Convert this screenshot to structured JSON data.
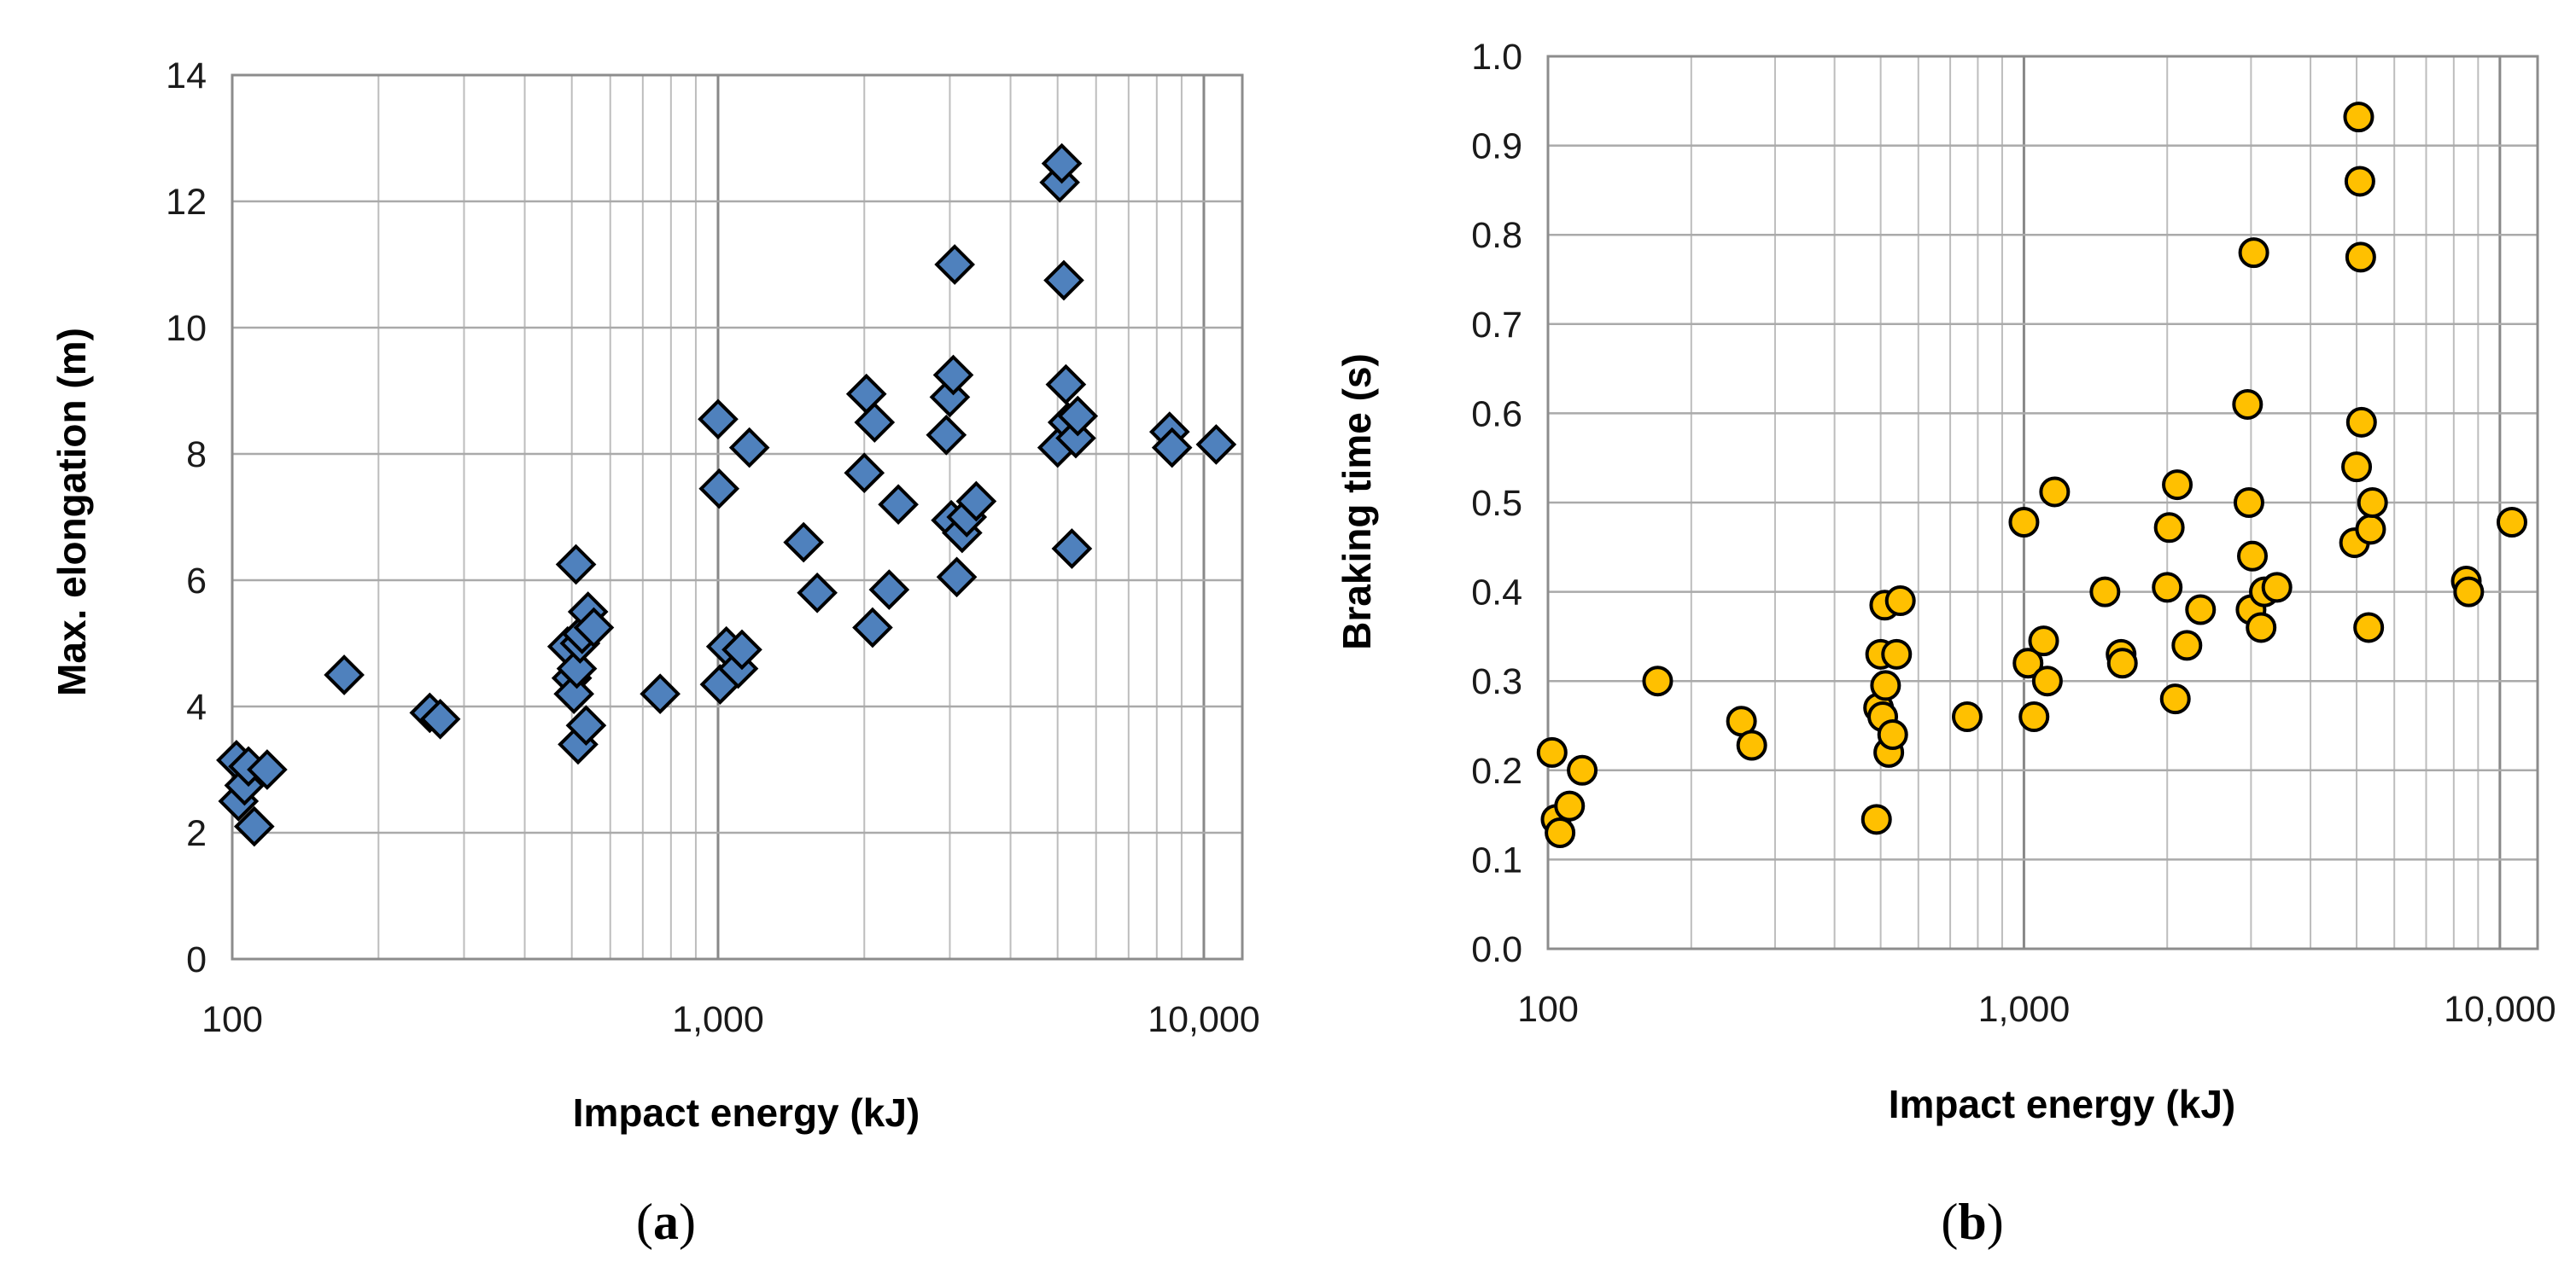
{
  "chart_data": [
    {
      "type": "scatter",
      "panel_label_open": "(",
      "panel_label_letter": "a",
      "panel_label_close": ")",
      "xlabel": "Impact energy (kJ)",
      "ylabel": "Max. elongation (m)",
      "xscale": "log",
      "xlim": [
        100,
        12000
      ],
      "ylim": [
        0,
        14
      ],
      "grid": true,
      "marker": "diamond",
      "marker_color": "#4F81BD",
      "x_ticks": [
        {
          "value": 100,
          "label": "100"
        },
        {
          "value": 1000,
          "label": "1,000"
        },
        {
          "value": 10000,
          "label": "10,000"
        }
      ],
      "y_ticks": [
        {
          "value": 0,
          "label": "0"
        },
        {
          "value": 2,
          "label": "2"
        },
        {
          "value": 4,
          "label": "4"
        },
        {
          "value": 6,
          "label": "6"
        },
        {
          "value": 8,
          "label": "8"
        },
        {
          "value": 10,
          "label": "10"
        },
        {
          "value": 12,
          "label": "12"
        },
        {
          "value": 14,
          "label": "14"
        }
      ],
      "points": [
        {
          "x": 102,
          "y": 3.15
        },
        {
          "x": 103,
          "y": 2.5
        },
        {
          "x": 106,
          "y": 2.75
        },
        {
          "x": 108,
          "y": 3.05
        },
        {
          "x": 111,
          "y": 2.1
        },
        {
          "x": 118,
          "y": 3.0
        },
        {
          "x": 170,
          "y": 4.5
        },
        {
          "x": 255,
          "y": 3.9
        },
        {
          "x": 268,
          "y": 3.8
        },
        {
          "x": 490,
          "y": 4.95
        },
        {
          "x": 500,
          "y": 4.45
        },
        {
          "x": 505,
          "y": 4.2
        },
        {
          "x": 510,
          "y": 6.25
        },
        {
          "x": 512,
          "y": 4.6
        },
        {
          "x": 515,
          "y": 3.4
        },
        {
          "x": 520,
          "y": 5.0
        },
        {
          "x": 525,
          "y": 5.15
        },
        {
          "x": 535,
          "y": 3.7
        },
        {
          "x": 540,
          "y": 5.5
        },
        {
          "x": 555,
          "y": 5.25
        },
        {
          "x": 760,
          "y": 4.2
        },
        {
          "x": 1000,
          "y": 8.55
        },
        {
          "x": 1005,
          "y": 7.45
        },
        {
          "x": 1010,
          "y": 4.35
        },
        {
          "x": 1040,
          "y": 4.95
        },
        {
          "x": 1100,
          "y": 4.6
        },
        {
          "x": 1120,
          "y": 4.9
        },
        {
          "x": 1160,
          "y": 8.1
        },
        {
          "x": 1500,
          "y": 6.6
        },
        {
          "x": 1600,
          "y": 5.8
        },
        {
          "x": 2000,
          "y": 7.7
        },
        {
          "x": 2020,
          "y": 8.95
        },
        {
          "x": 2080,
          "y": 5.25
        },
        {
          "x": 2100,
          "y": 8.5
        },
        {
          "x": 2250,
          "y": 5.85
        },
        {
          "x": 2350,
          "y": 7.2
        },
        {
          "x": 2950,
          "y": 8.3
        },
        {
          "x": 3000,
          "y": 8.9
        },
        {
          "x": 3020,
          "y": 6.95
        },
        {
          "x": 3050,
          "y": 9.25
        },
        {
          "x": 3070,
          "y": 11.0
        },
        {
          "x": 3100,
          "y": 6.05
        },
        {
          "x": 3180,
          "y": 6.75
        },
        {
          "x": 3250,
          "y": 7.0
        },
        {
          "x": 3400,
          "y": 7.25
        },
        {
          "x": 5000,
          "y": 8.1
        },
        {
          "x": 5050,
          "y": 12.3
        },
        {
          "x": 5100,
          "y": 12.6
        },
        {
          "x": 5150,
          "y": 10.75
        },
        {
          "x": 5200,
          "y": 9.1
        },
        {
          "x": 5250,
          "y": 8.5
        },
        {
          "x": 5350,
          "y": 6.5
        },
        {
          "x": 5450,
          "y": 8.25
        },
        {
          "x": 5500,
          "y": 8.6
        },
        {
          "x": 8500,
          "y": 8.35
        },
        {
          "x": 8600,
          "y": 8.1
        },
        {
          "x": 10600,
          "y": 8.15
        }
      ]
    },
    {
      "type": "scatter",
      "panel_label_open": "(",
      "panel_label_letter": "b",
      "panel_label_close": ")",
      "xlabel": "Impact energy (kJ)",
      "ylabel": "Braking time (s)",
      "xscale": "log",
      "xlim": [
        100,
        12000
      ],
      "ylim": [
        0,
        1.0
      ],
      "grid": true,
      "marker": "circle",
      "marker_color": "#FFC000",
      "x_ticks": [
        {
          "value": 100,
          "label": "100"
        },
        {
          "value": 1000,
          "label": "1,000"
        },
        {
          "value": 10000,
          "label": "10,000"
        }
      ],
      "y_ticks": [
        {
          "value": 0.0,
          "label": "0.0"
        },
        {
          "value": 0.1,
          "label": "0.1"
        },
        {
          "value": 0.2,
          "label": "0.2"
        },
        {
          "value": 0.3,
          "label": "0.3"
        },
        {
          "value": 0.4,
          "label": "0.4"
        },
        {
          "value": 0.5,
          "label": "0.5"
        },
        {
          "value": 0.6,
          "label": "0.6"
        },
        {
          "value": 0.7,
          "label": "0.7"
        },
        {
          "value": 0.8,
          "label": "0.8"
        },
        {
          "value": 0.9,
          "label": "0.9"
        },
        {
          "value": 1.0,
          "label": "1.0"
        }
      ],
      "points": [
        {
          "x": 102,
          "y": 0.22
        },
        {
          "x": 104,
          "y": 0.145
        },
        {
          "x": 106,
          "y": 0.13
        },
        {
          "x": 111,
          "y": 0.16
        },
        {
          "x": 118,
          "y": 0.2
        },
        {
          "x": 170,
          "y": 0.3
        },
        {
          "x": 255,
          "y": 0.255
        },
        {
          "x": 268,
          "y": 0.228
        },
        {
          "x": 490,
          "y": 0.145
        },
        {
          "x": 495,
          "y": 0.27
        },
        {
          "x": 500,
          "y": 0.33
        },
        {
          "x": 505,
          "y": 0.26
        },
        {
          "x": 510,
          "y": 0.385
        },
        {
          "x": 512,
          "y": 0.295
        },
        {
          "x": 520,
          "y": 0.22
        },
        {
          "x": 530,
          "y": 0.24
        },
        {
          "x": 540,
          "y": 0.33
        },
        {
          "x": 550,
          "y": 0.39
        },
        {
          "x": 760,
          "y": 0.26
        },
        {
          "x": 1000,
          "y": 0.478
        },
        {
          "x": 1020,
          "y": 0.32
        },
        {
          "x": 1050,
          "y": 0.26
        },
        {
          "x": 1100,
          "y": 0.345
        },
        {
          "x": 1120,
          "y": 0.3
        },
        {
          "x": 1160,
          "y": 0.512
        },
        {
          "x": 1480,
          "y": 0.4
        },
        {
          "x": 1600,
          "y": 0.33
        },
        {
          "x": 1610,
          "y": 0.32
        },
        {
          "x": 2000,
          "y": 0.405
        },
        {
          "x": 2020,
          "y": 0.472
        },
        {
          "x": 2080,
          "y": 0.28
        },
        {
          "x": 2100,
          "y": 0.52
        },
        {
          "x": 2200,
          "y": 0.34
        },
        {
          "x": 2350,
          "y": 0.38
        },
        {
          "x": 2950,
          "y": 0.61
        },
        {
          "x": 2970,
          "y": 0.5
        },
        {
          "x": 3000,
          "y": 0.38
        },
        {
          "x": 3020,
          "y": 0.44
        },
        {
          "x": 3040,
          "y": 0.78
        },
        {
          "x": 3150,
          "y": 0.36
        },
        {
          "x": 3200,
          "y": 0.4
        },
        {
          "x": 3400,
          "y": 0.405
        },
        {
          "x": 4950,
          "y": 0.455
        },
        {
          "x": 5000,
          "y": 0.54
        },
        {
          "x": 5050,
          "y": 0.932
        },
        {
          "x": 5080,
          "y": 0.86
        },
        {
          "x": 5100,
          "y": 0.775
        },
        {
          "x": 5120,
          "y": 0.59
        },
        {
          "x": 5300,
          "y": 0.36
        },
        {
          "x": 5350,
          "y": 0.47
        },
        {
          "x": 5400,
          "y": 0.5
        },
        {
          "x": 8500,
          "y": 0.412
        },
        {
          "x": 8600,
          "y": 0.4
        },
        {
          "x": 10600,
          "y": 0.478
        }
      ]
    }
  ]
}
